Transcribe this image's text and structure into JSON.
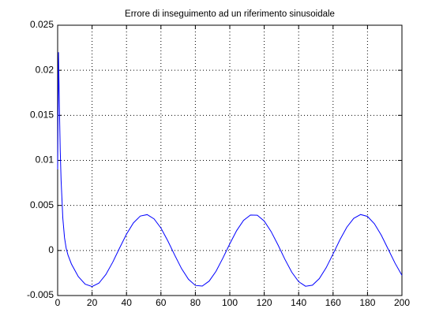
{
  "chart_data": {
    "type": "line",
    "title": "Errore di inseguimento ad un riferimento sinusoidale",
    "x": [
      0,
      0.5,
      1,
      1.5,
      2,
      3,
      4,
      5,
      6,
      8,
      12,
      16,
      20,
      24,
      28,
      32,
      36,
      40,
      44,
      48,
      52,
      56,
      60,
      64,
      68,
      72,
      76,
      80,
      84,
      88,
      92,
      96,
      100,
      104,
      108,
      112,
      116,
      120,
      124,
      128,
      132,
      136,
      140,
      144,
      148,
      152,
      156,
      160,
      164,
      168,
      172,
      176,
      180,
      184,
      188,
      192,
      196,
      200
    ],
    "series": [
      {
        "color": "#0000ff",
        "values": [
          0.009,
          0.022,
          0.0161,
          0.0111,
          0.0078,
          0.0036,
          0.0014,
          0.0002,
          -0.0005,
          -0.0015,
          -0.0029,
          -0.00374,
          -0.004,
          -0.00362,
          -0.00267,
          -0.0013,
          0.00028,
          0.00181,
          0.00306,
          0.00382,
          0.00398,
          0.00351,
          0.00249,
          0.00107,
          -0.00051,
          -0.00202,
          -0.0032,
          -0.00388,
          -0.00395,
          -0.0034,
          -0.00231,
          -0.00084,
          0.00074,
          0.00221,
          0.00334,
          0.00393,
          0.00391,
          0.00327,
          0.0021,
          0.00062,
          -0.00097,
          -0.00241,
          -0.00346,
          -0.00397,
          -0.00385,
          -0.00312,
          -0.00191,
          -0.00038,
          0.0012,
          0.00259,
          0.00357,
          0.00399,
          0.00378,
          0.00297,
          0.0017,
          0.00015,
          -0.00141,
          -0.00276
        ]
      }
    ],
    "xlim": [
      0,
      200
    ],
    "xticks": [
      0,
      20,
      40,
      60,
      80,
      100,
      120,
      140,
      160,
      180,
      200
    ],
    "ylim": [
      -0.005,
      0.025
    ],
    "yticks": [
      -0.005,
      0,
      0.005,
      0.01,
      0.015,
      0.02,
      0.025
    ],
    "grid": true
  }
}
